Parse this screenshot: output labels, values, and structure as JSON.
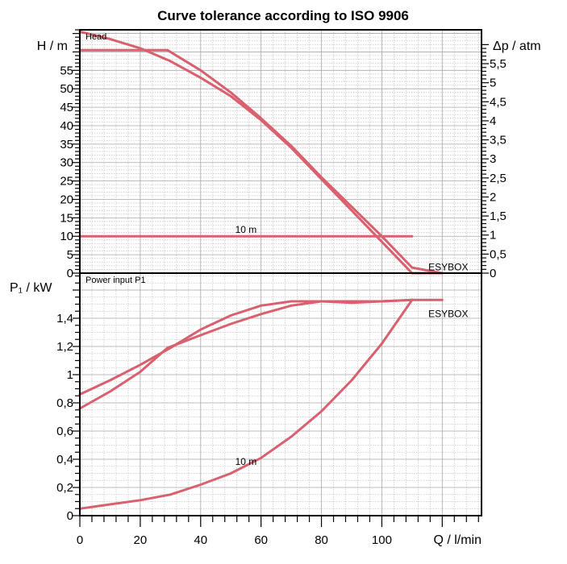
{
  "chart_data": {
    "type": "line",
    "title": "Curve tolerance according to ISO 9906",
    "xlabel": "Q / l/min",
    "x_ticks": [
      "0",
      "20",
      "40",
      "60",
      "80",
      "100"
    ],
    "xlim": [
      0,
      133
    ],
    "curve_color": "#d9606e",
    "panels": [
      {
        "name": "head",
        "panel_label": "Head",
        "ylabel_left": "H / m",
        "ylabel_right": "Δp / atm",
        "ylim": [
          0,
          66
        ],
        "y_ticks_left": [
          "0",
          "5",
          "10",
          "15",
          "20",
          "25",
          "30",
          "35",
          "40",
          "45",
          "50",
          "55"
        ],
        "y_ticks_right": [
          "0",
          "0,5",
          "1",
          "1,5",
          "2",
          "2,5",
          "3",
          "3,5",
          "4",
          "4,5",
          "5",
          "5,5"
        ],
        "annotations": [
          {
            "text": "10 m",
            "x": 55,
            "y": 10.9
          },
          {
            "text": "ESYBOX",
            "x": 122,
            "y": 0.8
          }
        ],
        "series": [
          {
            "name": "upper-curve",
            "x": [
              0,
              10,
              20,
              30,
              40,
              50,
              60,
              70,
              80,
              90,
              100,
              110,
              120
            ],
            "y": [
              65.5,
              63.5,
              61,
              57.5,
              53,
              48,
              41.5,
              34,
              25.5,
              17,
              8.5,
              0,
              0
            ]
          },
          {
            "name": "lower-curve",
            "x": [
              0,
              29,
              40,
              50,
              60,
              70,
              80,
              90,
              100,
              110,
              120
            ],
            "y": [
              60.5,
              60.5,
              55,
              49,
              42,
              34.5,
              26,
              18,
              10,
              1.5,
              0
            ]
          },
          {
            "name": "10m-line",
            "x": [
              0,
              110
            ],
            "y": [
              10,
              10
            ]
          }
        ]
      },
      {
        "name": "power",
        "panel_label": "Power input P1",
        "ylabel_left": "P₁ / kW",
        "ylim": [
          0,
          1.72
        ],
        "y_ticks_left": [
          "0",
          "0,2",
          "0,4",
          "0,6",
          "0,8",
          "1",
          "1,2",
          "1,4"
        ],
        "annotations": [
          {
            "text": "10 m",
            "x": 55,
            "y": 0.36
          },
          {
            "text": "ESYBOX",
            "x": 122,
            "y": 1.41
          }
        ],
        "series": [
          {
            "name": "upper-curve",
            "x": [
              0,
              10,
              20,
              30,
              40,
              50,
              60,
              70,
              80,
              90,
              100,
              110,
              120
            ],
            "y": [
              0.86,
              0.96,
              1.07,
              1.19,
              1.32,
              1.42,
              1.49,
              1.52,
              1.52,
              1.51,
              1.52,
              1.53,
              1.53
            ]
          },
          {
            "name": "lower-curve",
            "x": [
              0,
              10,
              20,
              29,
              40,
              50,
              60,
              70,
              80,
              90,
              100,
              110
            ],
            "y": [
              0.76,
              0.88,
              1.02,
              1.19,
              1.28,
              1.36,
              1.43,
              1.49,
              1.52,
              1.52,
              1.52,
              1.53
            ]
          },
          {
            "name": "10m-curve",
            "x": [
              0,
              10,
              20,
              30,
              40,
              50,
              60,
              70,
              80,
              90,
              100,
              110
            ],
            "y": [
              0.05,
              0.08,
              0.11,
              0.15,
              0.22,
              0.3,
              0.41,
              0.56,
              0.74,
              0.96,
              1.22,
              1.53
            ]
          }
        ]
      }
    ]
  }
}
